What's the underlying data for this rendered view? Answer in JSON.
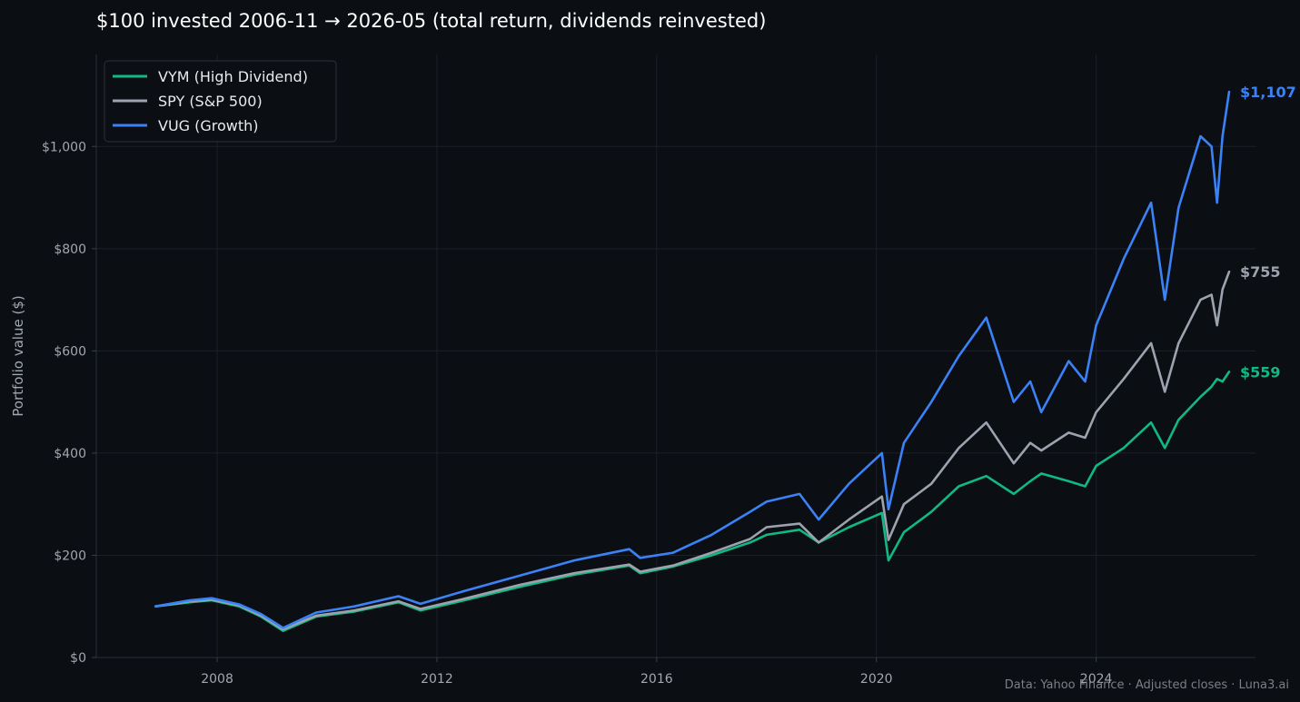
{
  "chart_data": {
    "type": "line",
    "title": "$100 invested 2006-11 → 2026-05 (total return, dividends reinvested)",
    "xlabel": "",
    "ylabel": "Portfolio value ($)",
    "xlim": [
      2005.8,
      2026.9
    ],
    "ylim": [
      0,
      1180
    ],
    "x_ticks": [
      2008,
      2012,
      2016,
      2020,
      2024
    ],
    "x_tick_labels": [
      "2008",
      "2012",
      "2016",
      "2020",
      "2024"
    ],
    "y_ticks": [
      0,
      200,
      400,
      600,
      800,
      1000
    ],
    "y_tick_labels": [
      "$0",
      "$200",
      "$400",
      "$600",
      "$800",
      "$1,000"
    ],
    "grid": true,
    "legend_position": "top-left",
    "footer": "Data: Yahoo Finance · Adjusted closes · Luna3.ai",
    "series": [
      {
        "name": "VYM (High Dividend)",
        "color": "#10b981",
        "end_label": "$559",
        "x": [
          2006.88,
          2007.5,
          2007.9,
          2008.4,
          2008.8,
          2009.2,
          2009.8,
          2010.5,
          2011.3,
          2011.7,
          2012.5,
          2013.5,
          2014.5,
          2015.5,
          2015.7,
          2016.3,
          2017.0,
          2017.7,
          2018.0,
          2018.6,
          2018.95,
          2019.5,
          2020.1,
          2020.22,
          2020.5,
          2021.0,
          2021.5,
          2022.0,
          2022.5,
          2022.8,
          2023.0,
          2023.5,
          2023.8,
          2024.0,
          2024.5,
          2025.0,
          2025.25,
          2025.5,
          2025.9,
          2026.1,
          2026.2,
          2026.3,
          2026.42
        ],
        "y": [
          100,
          108,
          112,
          100,
          80,
          52,
          80,
          90,
          108,
          92,
          112,
          138,
          162,
          180,
          165,
          178,
          200,
          225,
          240,
          250,
          225,
          255,
          283,
          190,
          245,
          285,
          335,
          355,
          320,
          345,
          360,
          345,
          335,
          375,
          410,
          460,
          410,
          465,
          510,
          530,
          545,
          540,
          559
        ]
      },
      {
        "name": "SPY (S&P 500)",
        "color": "#9ca3af",
        "end_label": "$755",
        "x": [
          2006.88,
          2007.5,
          2007.9,
          2008.4,
          2008.8,
          2009.2,
          2009.8,
          2010.5,
          2011.3,
          2011.7,
          2012.5,
          2013.5,
          2014.5,
          2015.5,
          2015.7,
          2016.3,
          2017.0,
          2017.7,
          2018.0,
          2018.6,
          2018.95,
          2019.5,
          2020.1,
          2020.22,
          2020.5,
          2021.0,
          2021.5,
          2022.0,
          2022.5,
          2022.8,
          2023.0,
          2023.5,
          2023.8,
          2024.0,
          2024.5,
          2025.0,
          2025.25,
          2025.5,
          2025.9,
          2026.1,
          2026.2,
          2026.3,
          2026.42
        ],
        "y": [
          100,
          110,
          113,
          102,
          82,
          55,
          82,
          92,
          110,
          95,
          115,
          142,
          165,
          182,
          168,
          180,
          205,
          232,
          255,
          262,
          225,
          270,
          315,
          230,
          300,
          340,
          410,
          460,
          380,
          420,
          405,
          440,
          430,
          480,
          545,
          615,
          520,
          615,
          700,
          710,
          650,
          720,
          755
        ]
      },
      {
        "name": "VUG (Growth)",
        "color": "#3b82f6",
        "end_label": "$1,107",
        "x": [
          2006.88,
          2007.5,
          2007.9,
          2008.4,
          2008.8,
          2009.2,
          2009.8,
          2010.5,
          2011.3,
          2011.7,
          2012.5,
          2013.5,
          2014.5,
          2015.5,
          2015.7,
          2016.3,
          2017.0,
          2017.7,
          2018.0,
          2018.6,
          2018.95,
          2019.5,
          2020.1,
          2020.22,
          2020.5,
          2021.0,
          2021.5,
          2022.0,
          2022.5,
          2022.8,
          2023.0,
          2023.5,
          2023.8,
          2024.0,
          2024.5,
          2025.0,
          2025.25,
          2025.5,
          2025.9,
          2026.1,
          2026.2,
          2026.3,
          2026.42
        ],
        "y": [
          100,
          112,
          116,
          104,
          85,
          58,
          88,
          100,
          120,
          105,
          130,
          160,
          190,
          212,
          195,
          205,
          240,
          285,
          305,
          320,
          270,
          340,
          400,
          290,
          420,
          500,
          590,
          665,
          500,
          540,
          480,
          580,
          540,
          650,
          780,
          890,
          700,
          880,
          1020,
          1000,
          890,
          1020,
          1107
        ]
      }
    ]
  }
}
